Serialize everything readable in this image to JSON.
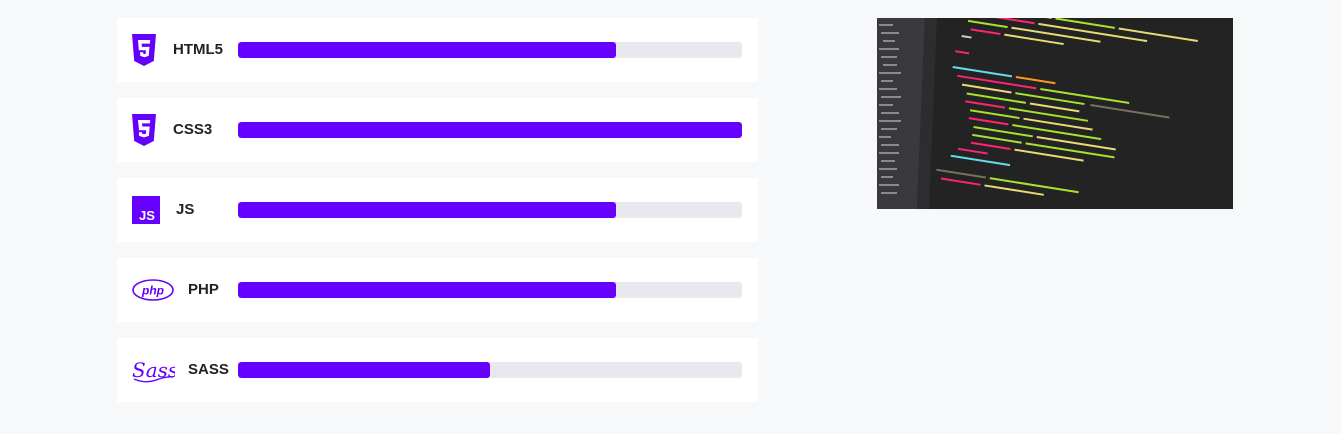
{
  "accent_color": "#6500ff",
  "skills": [
    {
      "name": "HTML5",
      "icon": "html5-icon",
      "level_percent": 75
    },
    {
      "name": "CSS3",
      "icon": "css3-icon",
      "level_percent": 100
    },
    {
      "name": "JS",
      "icon": "js-icon",
      "level_percent": 75
    },
    {
      "name": "PHP",
      "icon": "php-icon",
      "level_percent": 75
    },
    {
      "name": "SASS",
      "icon": "sass-icon",
      "level_percent": 50
    }
  ],
  "image": {
    "icon": "code-editor-image"
  }
}
